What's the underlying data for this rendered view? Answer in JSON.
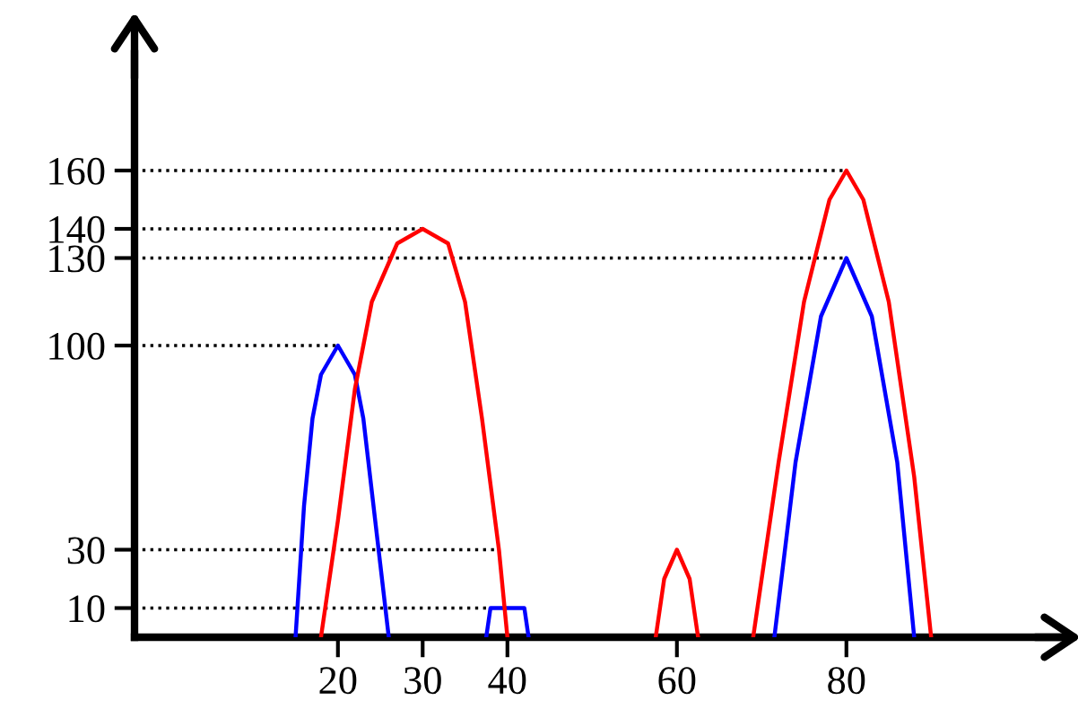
{
  "chart_data": {
    "type": "line",
    "series": [
      {
        "color": "#0000ff",
        "x": [
          15,
          16,
          17,
          18,
          20,
          22,
          23,
          24,
          25,
          26,
          32,
          37.5,
          38,
          42,
          42.5,
          55,
          71.5,
          74,
          77,
          80,
          83,
          86,
          88
        ],
        "values": [
          0,
          45,
          75,
          90,
          100,
          90,
          75,
          50,
          25,
          0,
          null,
          0,
          10,
          10,
          0,
          null,
          0,
          60,
          110,
          130,
          110,
          60,
          0
        ]
      },
      {
        "color": "#ff0000",
        "x": [
          18,
          20,
          22,
          24,
          27,
          30,
          33,
          35,
          37,
          39,
          40,
          50,
          57.5,
          58.5,
          60,
          61.5,
          62.5,
          66,
          69,
          72,
          75,
          78,
          80,
          82,
          85,
          88,
          90
        ],
        "values": [
          0,
          40,
          85,
          115,
          135,
          140,
          135,
          115,
          75,
          30,
          0,
          null,
          0,
          20,
          30,
          20,
          0,
          null,
          0,
          60,
          115,
          150,
          160,
          150,
          115,
          55,
          0
        ]
      }
    ],
    "xlim": [
      -4,
      105
    ],
    "ylim": [
      0,
      200
    ],
    "xticks": [
      20,
      30,
      40,
      60,
      80
    ],
    "yticks": [
      10,
      30,
      100,
      130,
      140,
      160
    ],
    "ref_lines": [
      {
        "axis": "y",
        "value": 10,
        "line_style": "dotted",
        "color": "#000000"
      },
      {
        "axis": "y",
        "value": 30,
        "line_style": "dotted",
        "color": "#000000"
      },
      {
        "axis": "y",
        "value": 100,
        "line_style": "dotted",
        "color": "#000000"
      },
      {
        "axis": "y",
        "value": 130,
        "line_style": "dotted",
        "color": "#000000"
      },
      {
        "axis": "y",
        "value": 140,
        "line_style": "dotted",
        "color": "#000000"
      },
      {
        "axis": "y",
        "value": 160,
        "line_style": "dotted",
        "color": "#000000"
      }
    ],
    "grid": false,
    "legend": false,
    "marker": "none",
    "line_style": "solid"
  }
}
